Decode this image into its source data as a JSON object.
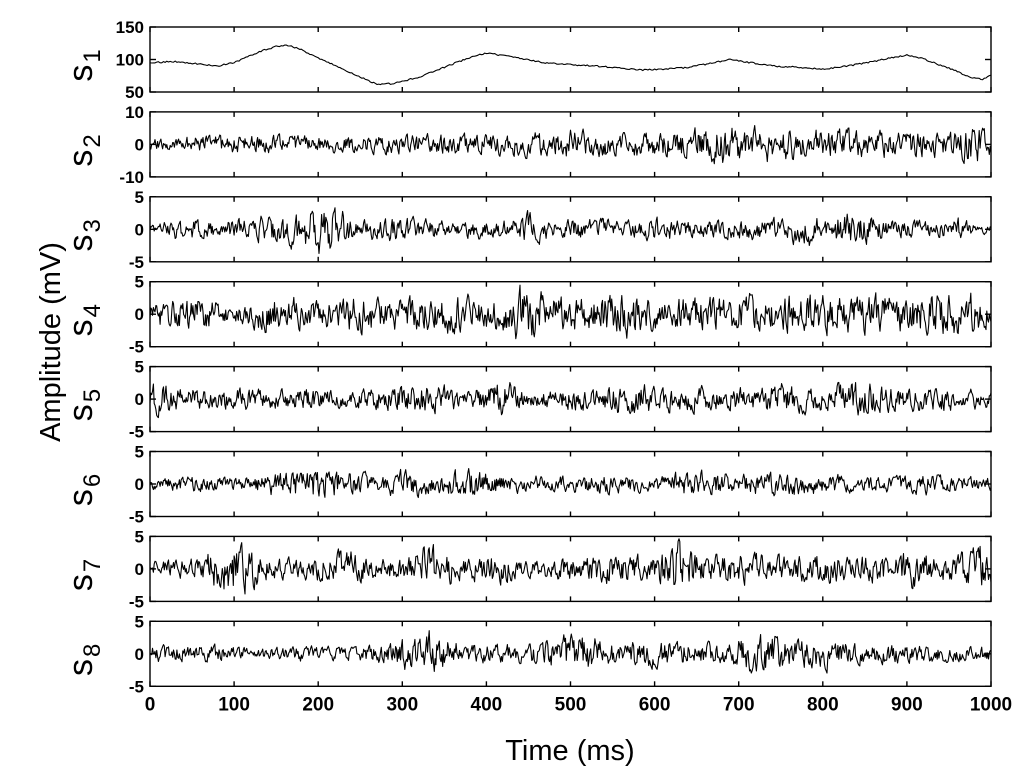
{
  "chart_data": {
    "type": "line",
    "xlabel": "Time (ms)",
    "ylabel": "Amplitude (mV)",
    "xlim": [
      0,
      1000
    ],
    "xticks": [
      "0",
      "100",
      "200",
      "300",
      "400",
      "500",
      "600",
      "700",
      "800",
      "900",
      "1000"
    ],
    "grid": false,
    "legend": "none",
    "line_color": "#000000",
    "panels": [
      {
        "label": "s",
        "subscript": "1",
        "ylim": [
          50,
          150
        ],
        "yticks": [
          "50",
          "100",
          "150"
        ],
        "kind": "smooth",
        "x": [
          0,
          30,
          60,
          80,
          100,
          130,
          150,
          165,
          180,
          200,
          230,
          255,
          270,
          290,
          320,
          350,
          380,
          400,
          420,
          440,
          470,
          500,
          530,
          560,
          585,
          610,
          640,
          670,
          690,
          710,
          740,
          770,
          800,
          830,
          860,
          880,
          900,
          920,
          940,
          960,
          975,
          990,
          1000
        ],
        "values": [
          95,
          97,
          93,
          90,
          95,
          112,
          120,
          122,
          115,
          102,
          85,
          70,
          62,
          63,
          73,
          88,
          103,
          110,
          106,
          102,
          95,
          92,
          90,
          87,
          84,
          85,
          88,
          95,
          100,
          96,
          90,
          88,
          85,
          90,
          97,
          102,
          107,
          101,
          91,
          82,
          72,
          70,
          76
        ]
      },
      {
        "label": "s",
        "subscript": "2",
        "ylim": [
          -10,
          10
        ],
        "yticks": [
          "-10",
          "0",
          "10"
        ],
        "kind": "noise",
        "seed": 2,
        "env_x": [
          0,
          80,
          200,
          300,
          400,
          500,
          600,
          680,
          760,
          850,
          950,
          980,
          1000
        ],
        "envelope": [
          1.5,
          2.5,
          2,
          2.5,
          2.5,
          3.5,
          3,
          5,
          4,
          3.5,
          3.5,
          5,
          3
        ]
      },
      {
        "label": "s",
        "subscript": "3",
        "ylim": [
          -5,
          5
        ],
        "yticks": [
          "-5",
          "0",
          "5"
        ],
        "kind": "noise",
        "seed": 3,
        "env_x": [
          0,
          40,
          80,
          120,
          150,
          180,
          200,
          225,
          250,
          300,
          360,
          430,
          450,
          480,
          530,
          570,
          600,
          650,
          700,
          760,
          780,
          800,
          840,
          870,
          930,
          960,
          980,
          1000
        ],
        "envelope": [
          0.5,
          1.5,
          1,
          1.5,
          2,
          2.5,
          3,
          2.5,
          1.2,
          1.5,
          1,
          1.5,
          2,
          1,
          1.5,
          1,
          1.5,
          1,
          1.2,
          1.5,
          2.5,
          1.5,
          2.5,
          1.2,
          1,
          1.5,
          0.7,
          0.5
        ]
      },
      {
        "label": "s",
        "subscript": "4",
        "ylim": [
          -5,
          5
        ],
        "yticks": [
          "-5",
          "0",
          "5"
        ],
        "kind": "noise",
        "seed": 4,
        "env_x": [
          0,
          40,
          100,
          150,
          200,
          250,
          300,
          350,
          400,
          430,
          440,
          500,
          580,
          600,
          700,
          800,
          900,
          960,
          980,
          1000
        ],
        "envelope": [
          1.5,
          2.5,
          1.2,
          2.5,
          1.5,
          2.5,
          2,
          2.5,
          2,
          2.5,
          3.5,
          2,
          3,
          2,
          2.5,
          2.5,
          2.5,
          3.2,
          2.5,
          2
        ]
      },
      {
        "label": "s",
        "subscript": "5",
        "ylim": [
          -5,
          5
        ],
        "yticks": [
          "-5",
          "0",
          "5"
        ],
        "kind": "noise",
        "seed": 5,
        "env_x": [
          0,
          40,
          80,
          100,
          150,
          200,
          230,
          280,
          330,
          380,
          420,
          450,
          520,
          580,
          640,
          700,
          750,
          800,
          840,
          900,
          950,
          1000
        ],
        "envelope": [
          2,
          1.5,
          1.2,
          1.5,
          1.2,
          1.5,
          1,
          1.5,
          2.2,
          1,
          2.5,
          1,
          1.5,
          2,
          1.5,
          1.5,
          2,
          1.5,
          2.2,
          1.5,
          1.5,
          1
        ]
      },
      {
        "label": "s",
        "subscript": "6",
        "ylim": [
          -5,
          5
        ],
        "yticks": [
          "-5",
          "0",
          "5"
        ],
        "kind": "noise",
        "seed": 6,
        "env_x": [
          0,
          50,
          100,
          170,
          200,
          260,
          300,
          340,
          380,
          420,
          480,
          530,
          600,
          640,
          700,
          760,
          820,
          880,
          920,
          960,
          1000
        ],
        "envelope": [
          0.8,
          1,
          0.8,
          1.8,
          2.2,
          1.2,
          1.8,
          1.2,
          2,
          1.2,
          1,
          1.2,
          1,
          1.8,
          1.2,
          1.5,
          1.2,
          1,
          1.3,
          1,
          0.8
        ]
      },
      {
        "label": "s",
        "subscript": "7",
        "ylim": [
          -5,
          5
        ],
        "yticks": [
          "-5",
          "0",
          "5"
        ],
        "kind": "noise",
        "seed": 7,
        "env_x": [
          0,
          50,
          100,
          140,
          180,
          230,
          270,
          300,
          320,
          340,
          380,
          410,
          440,
          500,
          550,
          600,
          625,
          660,
          700,
          760,
          800,
          840,
          900,
          950,
          990,
          1000
        ],
        "envelope": [
          1,
          1.5,
          3.5,
          1.5,
          1.2,
          2.5,
          1.2,
          1.5,
          2.5,
          3,
          1.2,
          2.5,
          1,
          1.5,
          2,
          1.5,
          3.5,
          1.5,
          2,
          1.5,
          2,
          1.5,
          2.5,
          1.5,
          3,
          2
        ]
      },
      {
        "label": "s",
        "subscript": "8",
        "ylim": [
          -5,
          5
        ],
        "yticks": [
          "-5",
          "0",
          "5"
        ],
        "kind": "noise",
        "seed": 8,
        "env_x": [
          0,
          60,
          120,
          170,
          220,
          280,
          330,
          380,
          420,
          470,
          510,
          550,
          580,
          640,
          680,
          730,
          760,
          800,
          850,
          900,
          950,
          1000
        ],
        "envelope": [
          1,
          1.2,
          0.8,
          1,
          0.8,
          1.2,
          2.8,
          1.2,
          1.2,
          1.5,
          2.8,
          1.5,
          1.8,
          1.5,
          1.2,
          3,
          1.8,
          2,
          1.2,
          1.2,
          1,
          1
        ]
      }
    ]
  }
}
